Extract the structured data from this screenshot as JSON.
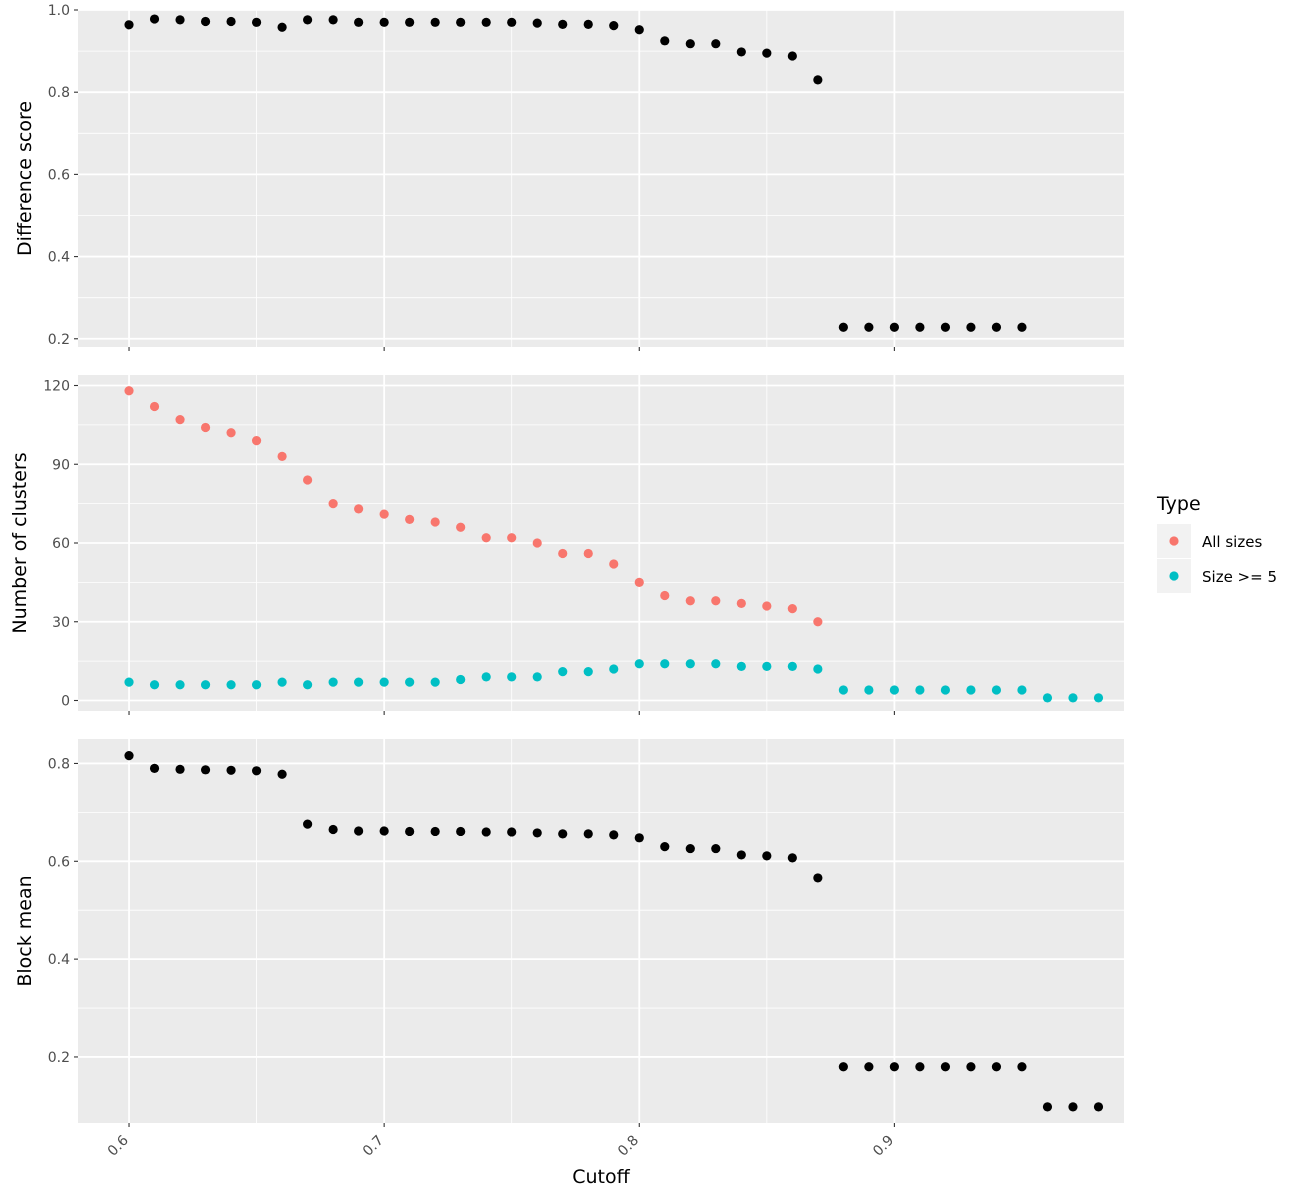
{
  "chart_data": [
    {
      "type": "scatter",
      "ylabel": "Difference score",
      "xlabel": "Cutoff",
      "xlim": [
        0.58,
        0.99
      ],
      "ylim": [
        0.18,
        1.0
      ],
      "yticks": [
        0.2,
        0.4,
        0.6,
        0.8,
        1.0
      ],
      "ytick_labels": [
        "0.2",
        "0.4",
        "0.6",
        "0.8",
        "1.0"
      ],
      "grid": true,
      "series": [
        {
          "color": "#000000",
          "x": [
            0.6,
            0.61,
            0.62,
            0.63,
            0.64,
            0.65,
            0.66,
            0.67,
            0.68,
            0.69,
            0.7,
            0.71,
            0.72,
            0.73,
            0.74,
            0.75,
            0.76,
            0.77,
            0.78,
            0.79,
            0.8,
            0.81,
            0.82,
            0.83,
            0.84,
            0.85,
            0.86,
            0.87,
            0.88,
            0.89,
            0.9,
            0.91,
            0.92,
            0.93,
            0.94,
            0.95
          ],
          "y": [
            0.964,
            0.978,
            0.976,
            0.972,
            0.972,
            0.97,
            0.958,
            0.976,
            0.976,
            0.97,
            0.97,
            0.97,
            0.97,
            0.97,
            0.97,
            0.97,
            0.968,
            0.965,
            0.965,
            0.962,
            0.952,
            0.925,
            0.918,
            0.918,
            0.898,
            0.895,
            0.888,
            0.83,
            0.228,
            0.228,
            0.228,
            0.228,
            0.228,
            0.228,
            0.228,
            0.228
          ]
        }
      ]
    },
    {
      "type": "scatter",
      "ylabel": "Number of clusters",
      "xlabel": "Cutoff",
      "xlim": [
        0.58,
        0.99
      ],
      "ylim": [
        -4,
        124
      ],
      "yticks": [
        0,
        30,
        60,
        90,
        120
      ],
      "ytick_labels": [
        "0",
        "30",
        "60",
        "90",
        "120"
      ],
      "grid": true,
      "legend": {
        "title": "Type",
        "position": "right",
        "entries": [
          "All sizes",
          "Size >= 5"
        ]
      },
      "series": [
        {
          "name": "All sizes",
          "color": "#F8766D",
          "x": [
            0.6,
            0.61,
            0.62,
            0.63,
            0.64,
            0.65,
            0.66,
            0.67,
            0.68,
            0.69,
            0.7,
            0.71,
            0.72,
            0.73,
            0.74,
            0.75,
            0.76,
            0.77,
            0.78,
            0.79,
            0.8,
            0.81,
            0.82,
            0.83,
            0.84,
            0.85,
            0.86,
            0.87
          ],
          "y": [
            118,
            112,
            107,
            104,
            102,
            99,
            93,
            84,
            75,
            73,
            71,
            69,
            68,
            66,
            62,
            62,
            60,
            56,
            56,
            52,
            45,
            40,
            38,
            38,
            37,
            36,
            35,
            30
          ]
        },
        {
          "name": "Size >= 5",
          "color": "#00BFC4",
          "x": [
            0.6,
            0.61,
            0.62,
            0.63,
            0.64,
            0.65,
            0.66,
            0.67,
            0.68,
            0.69,
            0.7,
            0.71,
            0.72,
            0.73,
            0.74,
            0.75,
            0.76,
            0.77,
            0.78,
            0.79,
            0.8,
            0.81,
            0.82,
            0.83,
            0.84,
            0.85,
            0.86,
            0.87,
            0.88,
            0.89,
            0.9,
            0.91,
            0.92,
            0.93,
            0.94,
            0.95,
            0.96,
            0.97,
            0.98
          ],
          "y": [
            7,
            6,
            6,
            6,
            6,
            6,
            7,
            6,
            7,
            7,
            7,
            7,
            7,
            8,
            9,
            9,
            9,
            11,
            11,
            12,
            14,
            14,
            14,
            14,
            13,
            13,
            13,
            12,
            4,
            4,
            4,
            4,
            4,
            4,
            4,
            4,
            1,
            1,
            1
          ]
        }
      ]
    },
    {
      "type": "scatter",
      "ylabel": "Block mean",
      "xlabel": "Cutoff",
      "xlim": [
        0.58,
        0.99
      ],
      "ylim": [
        0.065,
        0.85
      ],
      "yticks": [
        0.2,
        0.4,
        0.6,
        0.8
      ],
      "ytick_labels": [
        "0.2",
        "0.4",
        "0.6",
        "0.8"
      ],
      "xticks": [
        0.6,
        0.7,
        0.8,
        0.9
      ],
      "xtick_labels": [
        "0.6",
        "0.7",
        "0.8",
        "0.9"
      ],
      "grid": true,
      "series": [
        {
          "color": "#000000",
          "x": [
            0.6,
            0.61,
            0.62,
            0.63,
            0.64,
            0.65,
            0.66,
            0.67,
            0.68,
            0.69,
            0.7,
            0.71,
            0.72,
            0.73,
            0.74,
            0.75,
            0.76,
            0.77,
            0.78,
            0.79,
            0.8,
            0.81,
            0.82,
            0.83,
            0.84,
            0.85,
            0.86,
            0.87,
            0.88,
            0.89,
            0.9,
            0.91,
            0.92,
            0.93,
            0.94,
            0.95,
            0.96,
            0.97,
            0.98
          ],
          "y": [
            0.816,
            0.79,
            0.788,
            0.787,
            0.786,
            0.785,
            0.778,
            0.676,
            0.665,
            0.662,
            0.662,
            0.661,
            0.661,
            0.661,
            0.66,
            0.66,
            0.658,
            0.656,
            0.656,
            0.654,
            0.648,
            0.63,
            0.626,
            0.626,
            0.613,
            0.611,
            0.607,
            0.566,
            0.18,
            0.18,
            0.18,
            0.18,
            0.18,
            0.18,
            0.18,
            0.18,
            0.098,
            0.098,
            0.098
          ]
        }
      ]
    }
  ]
}
